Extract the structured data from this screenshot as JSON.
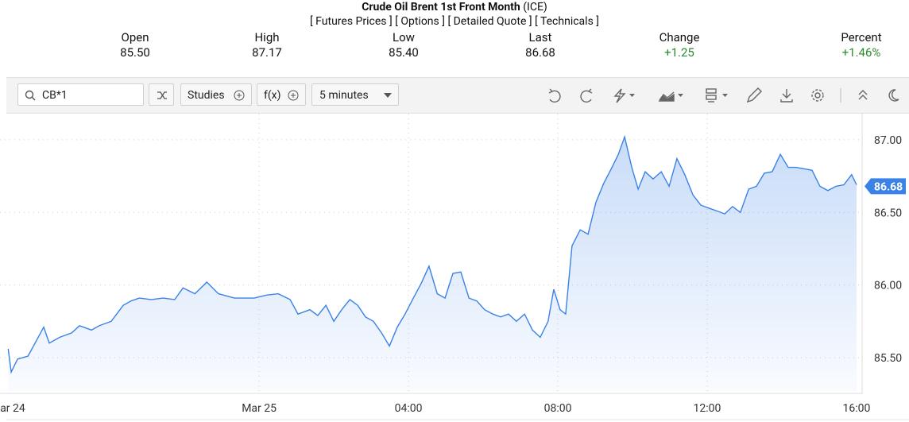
{
  "header": {
    "title": "Crude Oil Brent 1st Front Month",
    "exchange": "(ICE)",
    "links": [
      "[ Futures Prices ]",
      "[ Options ]",
      "[ Detailed Quote ]",
      "[ Technicals ]"
    ]
  },
  "quote": {
    "labels": [
      "Open",
      "High",
      "Low",
      "Last",
      "Change",
      "Percent"
    ],
    "values": [
      "85.50",
      "87.17",
      "85.40",
      "86.68",
      "+1.25",
      "+1.46%"
    ]
  },
  "toolbar": {
    "symbol": "CB*1",
    "studies": "Studies",
    "fx": "f(x)",
    "interval": "5 minutes"
  },
  "chart_data": {
    "type": "area",
    "color": "#3b82e6",
    "grid": true,
    "last_price": 86.68,
    "x": [
      -6.72,
      -6.64,
      -6.47,
      -6.19,
      -5.98,
      -5.77,
      -5.62,
      -5.34,
      -5.02,
      -4.81,
      -4.49,
      -4.28,
      -3.96,
      -3.64,
      -3.43,
      -3.21,
      -2.89,
      -2.57,
      -2.26,
      -2.04,
      -1.72,
      -1.4,
      -1.09,
      -0.66,
      -0.13,
      0.19,
      0.51,
      0.83,
      1.04,
      1.36,
      1.57,
      1.79,
      2.0,
      2.21,
      2.43,
      2.64,
      2.85,
      3.06,
      3.28,
      3.49,
      3.7,
      3.91,
      4.13,
      4.34,
      4.55,
      4.77,
      4.98,
      5.19,
      5.4,
      5.62,
      5.83,
      6.04,
      6.26,
      6.47,
      6.68,
      6.89,
      7.11,
      7.32,
      7.53,
      7.74,
      7.89,
      8.06,
      8.21,
      8.38,
      8.6,
      8.81,
      9.02,
      9.23,
      9.45,
      9.62,
      9.79,
      9.98,
      10.15,
      10.34,
      10.55,
      10.77,
      10.98,
      11.19,
      11.4,
      11.62,
      11.83,
      12.04,
      12.26,
      12.47,
      12.68,
      12.89,
      13.11,
      13.32,
      13.53,
      13.74,
      13.96,
      14.17,
      14.38,
      14.6,
      14.81,
      15.02,
      15.23,
      15.45,
      15.66,
      15.87,
      16.0
    ],
    "values": [
      85.56,
      85.4,
      85.49,
      85.51,
      85.61,
      85.71,
      85.6,
      85.64,
      85.67,
      85.72,
      85.69,
      85.72,
      85.75,
      85.86,
      85.89,
      85.91,
      85.9,
      85.91,
      85.9,
      85.98,
      85.94,
      86.02,
      85.94,
      85.91,
      85.91,
      85.93,
      85.94,
      85.9,
      85.8,
      85.83,
      85.79,
      85.86,
      85.75,
      85.83,
      85.9,
      85.86,
      85.78,
      85.75,
      85.67,
      85.58,
      85.71,
      85.8,
      85.91,
      86.01,
      86.13,
      85.94,
      85.91,
      86.08,
      86.09,
      85.91,
      85.89,
      85.83,
      85.8,
      85.78,
      85.8,
      85.75,
      85.8,
      85.69,
      85.64,
      85.75,
      85.97,
      85.83,
      85.8,
      86.27,
      86.38,
      86.35,
      86.57,
      86.7,
      86.81,
      86.9,
      87.02,
      86.81,
      86.66,
      86.78,
      86.73,
      86.78,
      86.68,
      86.87,
      86.76,
      86.62,
      86.55,
      86.53,
      86.51,
      86.49,
      86.54,
      86.5,
      86.66,
      86.68,
      86.77,
      86.78,
      86.9,
      86.81,
      86.81,
      86.8,
      86.79,
      86.68,
      86.65,
      86.68,
      86.69,
      86.76,
      86.69
    ],
    "xlim": [
      -6.94,
      16.15
    ],
    "ylim": [
      85.27,
      87.18
    ],
    "xticks": [
      {
        "value": -6.6,
        "label": "ar 24"
      },
      {
        "value": 0,
        "label": "Mar 25"
      },
      {
        "value": 4,
        "label": "04:00"
      },
      {
        "value": 8,
        "label": "08:00"
      },
      {
        "value": 12,
        "label": "12:00"
      },
      {
        "value": 16,
        "label": "16:00"
      }
    ],
    "yticks": [
      {
        "value": 85.5,
        "label": "85.50"
      },
      {
        "value": 86,
        "label": "86.00"
      },
      {
        "value": 86.5,
        "label": "86.50"
      },
      {
        "value": 87,
        "label": "87.00"
      }
    ]
  }
}
